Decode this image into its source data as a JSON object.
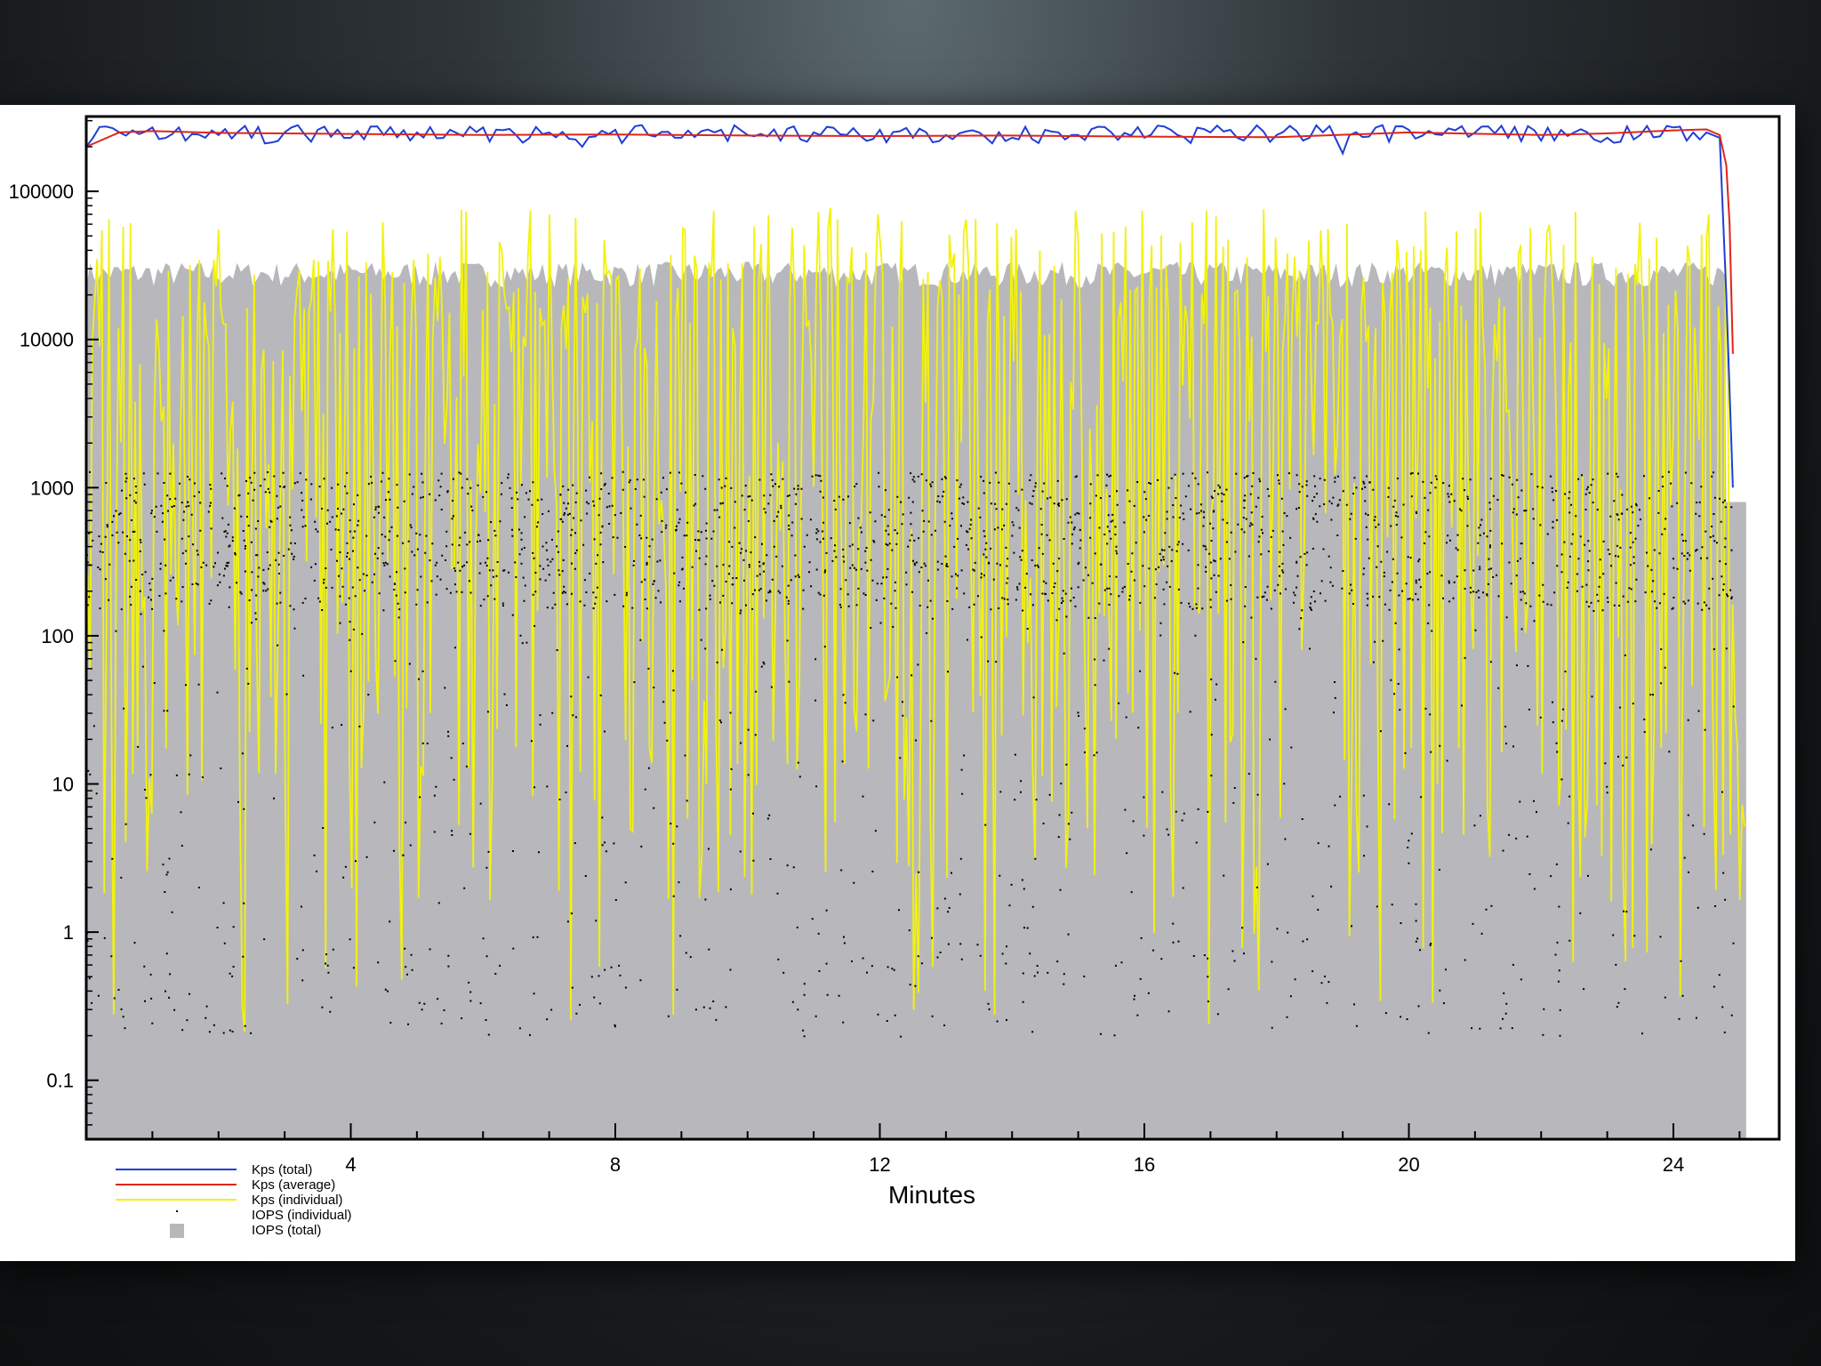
{
  "chart_data": {
    "type": "line",
    "title": "",
    "xlabel": "Minutes",
    "ylabel": "",
    "xlim": [
      0,
      25.6
    ],
    "ylim": [
      0.04,
      320000
    ],
    "y_scale": "log",
    "x_ticks": [
      4,
      8,
      12,
      16,
      20,
      24
    ],
    "y_ticks": [
      {
        "value": 0.1,
        "label": "0.1"
      },
      {
        "value": 1,
        "label": "1"
      },
      {
        "value": 10,
        "label": "10"
      },
      {
        "value": 100,
        "label": "100"
      },
      {
        "value": 1000,
        "label": "1000"
      },
      {
        "value": 10000,
        "label": "10000"
      },
      {
        "value": 100000,
        "label": "100000"
      }
    ],
    "grid": false,
    "legend_position": "bottom-left",
    "legend": [
      {
        "label": "Kps (total)",
        "color": "#1f3fd6",
        "style": "line"
      },
      {
        "label": "Kps (average)",
        "color": "#e0241b",
        "style": "line"
      },
      {
        "label": "Kps (individual)",
        "color": "#f2f20a",
        "style": "line"
      },
      {
        "label": "IOPS (individual)",
        "color": "#000000",
        "style": "dot"
      },
      {
        "label": "IOPS (total)",
        "color": "#b8b8bc",
        "style": "area"
      }
    ],
    "series": [
      {
        "name": "Kps (total)",
        "color": "#1f3fd6",
        "x": [
          0,
          0.5,
          1,
          1.5,
          2,
          2.5,
          3,
          3.5,
          4,
          4.5,
          5,
          5.5,
          6,
          6.5,
          7,
          7.5,
          8,
          8.5,
          9,
          9.5,
          10,
          10.5,
          11,
          11.5,
          12,
          12.5,
          13,
          13.5,
          14,
          14.5,
          15,
          15.5,
          16,
          16.5,
          17,
          17.5,
          18,
          18.5,
          19,
          19.5,
          20,
          20.5,
          21,
          21.5,
          22,
          22.5,
          23,
          23.5,
          24,
          24.5,
          24.7,
          24.8,
          24.9
        ],
        "y": [
          200000,
          250000,
          270000,
          220000,
          240000,
          230000,
          250000,
          260000,
          230000,
          240000,
          250000,
          260000,
          270000,
          240000,
          250000,
          200000,
          260000,
          240000,
          230000,
          250000,
          240000,
          220000,
          250000,
          240000,
          260000,
          230000,
          240000,
          250000,
          230000,
          260000,
          240000,
          250000,
          230000,
          240000,
          250000,
          220000,
          240000,
          230000,
          180000,
          270000,
          260000,
          240000,
          250000,
          230000,
          220000,
          250000,
          230000,
          240000,
          270000,
          250000,
          230000,
          20000,
          1000
        ]
      },
      {
        "name": "Kps (average)",
        "color": "#e0241b",
        "x": [
          0,
          0.5,
          1,
          2,
          4,
          6,
          8,
          10,
          12,
          14,
          16,
          18,
          20,
          22,
          23,
          24,
          24.5,
          24.7,
          24.8,
          24.85,
          24.9
        ],
        "y": [
          200000,
          250000,
          255000,
          248000,
          244000,
          240000,
          242000,
          238000,
          236000,
          238000,
          234000,
          232000,
          250000,
          240000,
          246000,
          258000,
          262000,
          240000,
          150000,
          60000,
          8000
        ]
      },
      {
        "name": "Kps (individual)",
        "color": "#f2f20a",
        "typical_range": [
          1.6,
          80000
        ],
        "max": 115000,
        "min": 0.2
      },
      {
        "name": "IOPS (individual)",
        "color": "#000000",
        "typical_range": [
          0.2,
          1300
        ]
      },
      {
        "name": "IOPS (total)",
        "color": "#b8b8bc",
        "typical_value": 28000,
        "x_end": 24.8
      }
    ]
  }
}
